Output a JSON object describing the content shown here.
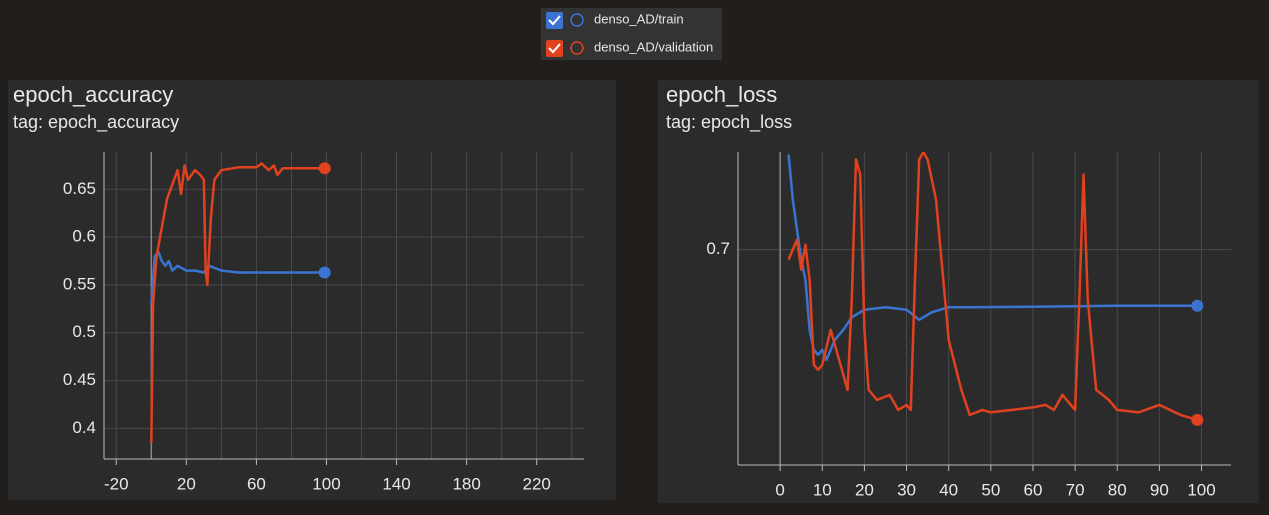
{
  "chart_data": [
    {
      "type": "line",
      "title": "epoch_accuracy",
      "subtitle": "tag: epoch_accuracy",
      "xlim": [
        -27,
        247
      ],
      "xticks": [
        -20,
        20,
        60,
        100,
        140,
        180,
        220
      ],
      "xgrid": [
        -20,
        0,
        20,
        40,
        60,
        80,
        100,
        120,
        140,
        160,
        180,
        200,
        220,
        240
      ],
      "ylim": [
        0.368,
        0.689
      ],
      "yticks": [
        0.4,
        0.45,
        0.5,
        0.55,
        0.6,
        0.65
      ],
      "grid": true,
      "series": [
        {
          "name": "denso_AD/train",
          "color": "#3b74d0",
          "x": [
            0,
            2,
            4,
            6,
            8,
            10,
            12,
            15,
            20,
            25,
            30,
            33,
            40,
            50,
            60,
            80,
            99
          ],
          "values": [
            0.53,
            0.58,
            0.585,
            0.575,
            0.57,
            0.575,
            0.565,
            0.57,
            0.565,
            0.565,
            0.563,
            0.57,
            0.565,
            0.563,
            0.563,
            0.563,
            0.563
          ]
        },
        {
          "name": "denso_AD/validation",
          "color": "#e0421f",
          "x": [
            0,
            1,
            3,
            5,
            7,
            9,
            11,
            13,
            15,
            17,
            19,
            21,
            25,
            28,
            30,
            31,
            32,
            34,
            36,
            40,
            50,
            60,
            63,
            67,
            70,
            72,
            75,
            85,
            99
          ],
          "values": [
            0.385,
            0.53,
            0.58,
            0.6,
            0.62,
            0.64,
            0.65,
            0.66,
            0.67,
            0.645,
            0.675,
            0.66,
            0.67,
            0.665,
            0.66,
            0.565,
            0.55,
            0.62,
            0.66,
            0.67,
            0.673,
            0.673,
            0.677,
            0.67,
            0.675,
            0.665,
            0.672,
            0.672,
            0.672
          ]
        }
      ]
    },
    {
      "type": "line",
      "title": "epoch_loss",
      "subtitle": "tag: epoch_loss",
      "xlim": [
        -10,
        107
      ],
      "xticks": [
        0,
        10,
        20,
        30,
        40,
        50,
        60,
        70,
        80,
        90,
        100
      ],
      "ylim": [
        0.614,
        0.739
      ],
      "yticks": [
        0.7
      ],
      "grid": true,
      "series": [
        {
          "name": "denso_AD/train",
          "color": "#3b74d0",
          "x": [
            2,
            3,
            4,
            5,
            6,
            7,
            8,
            9,
            10,
            11,
            13,
            15,
            17,
            20,
            25,
            30,
            33,
            36,
            40,
            45,
            60,
            80,
            99
          ],
          "values": [
            0.738,
            0.72,
            0.708,
            0.696,
            0.688,
            0.668,
            0.66,
            0.658,
            0.66,
            0.656,
            0.664,
            0.668,
            0.673,
            0.676,
            0.677,
            0.676,
            0.672,
            0.675,
            0.677,
            0.677,
            0.6772,
            0.6776,
            0.6776
          ]
        },
        {
          "name": "denso_AD/validation",
          "color": "#e0421f",
          "x": [
            2,
            3,
            4,
            5,
            6,
            7,
            8,
            9,
            10,
            12,
            14,
            15,
            16,
            17,
            18,
            19,
            20,
            21,
            23,
            26,
            28,
            30,
            31,
            32,
            33,
            34,
            35,
            37,
            40,
            43,
            45,
            48,
            50,
            55,
            60,
            63,
            65,
            67,
            70,
            71,
            72,
            73,
            75,
            78,
            80,
            85,
            90,
            95,
            99
          ],
          "values": [
            0.696,
            0.7,
            0.704,
            0.692,
            0.702,
            0.688,
            0.654,
            0.652,
            0.654,
            0.668,
            0.656,
            0.65,
            0.644,
            0.68,
            0.736,
            0.73,
            0.668,
            0.644,
            0.64,
            0.642,
            0.636,
            0.638,
            0.636,
            0.688,
            0.736,
            0.739,
            0.736,
            0.72,
            0.664,
            0.644,
            0.634,
            0.636,
            0.635,
            0.636,
            0.637,
            0.638,
            0.636,
            0.642,
            0.636,
            0.68,
            0.73,
            0.68,
            0.644,
            0.64,
            0.636,
            0.635,
            0.638,
            0.634,
            0.632
          ]
        }
      ]
    }
  ]
}
